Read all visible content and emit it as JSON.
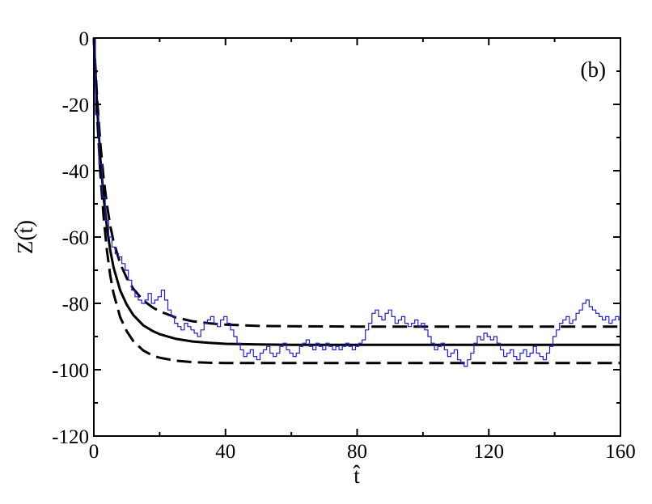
{
  "chart_data": {
    "type": "line",
    "panel_label": "(b)",
    "xlabel": "t̂",
    "ylabel": "Z(t̂)",
    "xlim": [
      0,
      160
    ],
    "ylim": [
      -120,
      0
    ],
    "xticks": [
      0,
      40,
      80,
      120,
      160
    ],
    "yticks": [
      0,
      -20,
      -40,
      -60,
      -80,
      -100,
      -120
    ],
    "xtick_labels": [
      "0",
      "40",
      "80",
      "120",
      "160"
    ],
    "ytick_labels": [
      "0",
      "-20",
      "-40",
      "-60",
      "-80",
      "-100",
      "-120"
    ],
    "grid": false,
    "legend": "none",
    "series": [
      {
        "style": "solid-black",
        "color": "#000000",
        "x": [
          0,
          1,
          2,
          3,
          4,
          5,
          6,
          8,
          10,
          12,
          15,
          18,
          20,
          25,
          30,
          35,
          40,
          50,
          60,
          80,
          100,
          120,
          140,
          160
        ],
        "y": [
          0,
          -20.8,
          -36.5,
          -48.3,
          -57.3,
          -64.0,
          -69.2,
          -76.1,
          -80.4,
          -83.5,
          -86.6,
          -88.4,
          -89.3,
          -90.7,
          -91.5,
          -91.9,
          -92.2,
          -92.4,
          -92.5,
          -92.5,
          -92.5,
          -92.5,
          -92.5,
          -92.5
        ]
      },
      {
        "style": "dashed-black-upper",
        "color": "#000000",
        "x": [
          0,
          1,
          2,
          3,
          4,
          5,
          6,
          8,
          10,
          12,
          15,
          18,
          20,
          25,
          30,
          35,
          40,
          50,
          60,
          80,
          100,
          120,
          140,
          160
        ],
        "y": [
          0,
          -18.3,
          -32.0,
          -42.5,
          -50.5,
          -56.6,
          -61.4,
          -68.0,
          -72.4,
          -75.6,
          -79.1,
          -81.3,
          -82.4,
          -84.3,
          -85.4,
          -86.0,
          -86.4,
          -86.8,
          -86.9,
          -87.0,
          -87.0,
          -87.0,
          -87.0,
          -87.0
        ]
      },
      {
        "style": "dashed-black-lower",
        "color": "#000000",
        "x": [
          0,
          1,
          2,
          3,
          4,
          5,
          6,
          8,
          10,
          12,
          15,
          18,
          20,
          25,
          30,
          35,
          40,
          50,
          60,
          80,
          100,
          120,
          140,
          160
        ],
        "y": [
          0,
          -23.4,
          -41.1,
          -54.3,
          -64.3,
          -71.6,
          -77.0,
          -84.2,
          -88.4,
          -91.4,
          -94.2,
          -95.8,
          -96.4,
          -97.3,
          -97.7,
          -97.9,
          -98.0,
          -98.0,
          -98.0,
          -98.0,
          -98.0,
          -98.0,
          -98.0,
          -98.0
        ]
      },
      {
        "style": "blue-stochastic",
        "color": "#1f1fd6",
        "x": [
          0,
          1,
          2,
          3,
          4,
          5,
          6,
          7,
          8,
          9,
          10,
          11,
          12,
          13,
          14,
          15,
          16,
          17,
          18,
          19,
          20,
          21,
          22,
          23,
          24,
          25,
          26,
          27,
          28,
          29,
          30,
          31,
          32,
          33,
          34,
          35,
          36,
          37,
          38,
          39,
          40,
          41,
          42,
          43,
          44,
          45,
          46,
          47,
          48,
          49,
          50,
          51,
          52,
          53,
          54,
          55,
          56,
          57,
          58,
          59,
          60,
          61,
          62,
          63,
          64,
          65,
          66,
          67,
          68,
          69,
          70,
          71,
          72,
          73,
          74,
          75,
          76,
          77,
          78,
          79,
          80,
          81,
          82,
          83,
          84,
          85,
          86,
          87,
          88,
          89,
          90,
          91,
          92,
          93,
          94,
          95,
          96,
          97,
          98,
          99,
          100,
          101,
          102,
          103,
          104,
          105,
          106,
          107,
          108,
          109,
          110,
          111,
          112,
          113,
          114,
          115,
          116,
          117,
          118,
          119,
          120,
          121,
          122,
          123,
          124,
          125,
          126,
          127,
          128,
          129,
          130,
          131,
          132,
          133,
          134,
          135,
          136,
          137,
          138,
          139,
          140,
          141,
          142,
          143,
          144,
          145,
          146,
          147,
          148,
          149,
          150,
          151,
          152,
          153,
          154,
          155,
          156,
          157,
          158,
          159,
          160
        ],
        "y": [
          0,
          -23,
          -38,
          -48,
          -55,
          -60,
          -63,
          -65,
          -66,
          -68,
          -70,
          -73,
          -76,
          -78,
          -79,
          -80,
          -79,
          -77,
          -80,
          -79,
          -78,
          -76,
          -79,
          -82,
          -84,
          -86,
          -87,
          -88,
          -86,
          -87,
          -88,
          -89,
          -90,
          -88,
          -86,
          -85,
          -84,
          -86,
          -87,
          -85,
          -84,
          -86,
          -88,
          -90,
          -92,
          -94,
          -96,
          -95,
          -94,
          -96,
          -97,
          -95,
          -94,
          -93,
          -95,
          -96,
          -95,
          -93,
          -92,
          -94,
          -95,
          -96,
          -95,
          -93,
          -92,
          -91,
          -93,
          -94,
          -92,
          -93,
          -94,
          -92,
          -93,
          -94,
          -93,
          -94,
          -93,
          -92,
          -93,
          -94,
          -93,
          -92,
          -91,
          -88,
          -86,
          -83,
          -82,
          -84,
          -85,
          -83,
          -82,
          -84,
          -86,
          -85,
          -84,
          -86,
          -87,
          -86,
          -85,
          -87,
          -86,
          -88,
          -90,
          -92,
          -94,
          -93,
          -92,
          -94,
          -96,
          -95,
          -94,
          -97,
          -98,
          -99,
          -97,
          -95,
          -92,
          -90,
          -91,
          -89,
          -90,
          -91,
          -90,
          -92,
          -94,
          -96,
          -95,
          -94,
          -96,
          -97,
          -95,
          -94,
          -96,
          -95,
          -93,
          -95,
          -96,
          -97,
          -95,
          -93,
          -90,
          -88,
          -86,
          -85,
          -84,
          -86,
          -85,
          -83,
          -82,
          -80,
          -79,
          -81,
          -82,
          -83,
          -84,
          -85,
          -84,
          -86,
          -85,
          -84,
          -85
        ]
      }
    ]
  }
}
